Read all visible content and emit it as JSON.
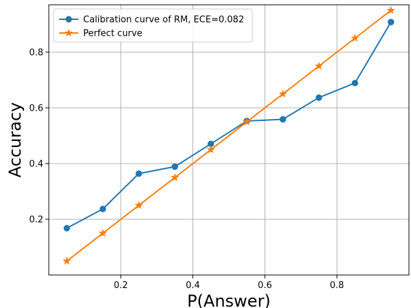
{
  "chart_data": {
    "type": "line",
    "xlabel": "P(Answer)",
    "ylabel": "Accuracy",
    "xlim": [
      0.0,
      1.0
    ],
    "ylim": [
      0.0,
      0.97
    ],
    "xticks": [
      0.2,
      0.4,
      0.6,
      0.8
    ],
    "yticks": [
      0.2,
      0.4,
      0.6,
      0.8
    ],
    "grid": true,
    "legend_position": "upper-left",
    "series": [
      {
        "name": "Calibration curve of RM, ECE=0.082",
        "color": "#1f77b4",
        "marker": "circle",
        "x": [
          0.05,
          0.15,
          0.25,
          0.35,
          0.45,
          0.55,
          0.65,
          0.75,
          0.85,
          0.95
        ],
        "y": [
          0.168,
          0.237,
          0.364,
          0.389,
          0.471,
          0.553,
          0.559,
          0.637,
          0.689,
          0.908
        ]
      },
      {
        "name": "Perfect curve",
        "color": "#ff7f0e",
        "marker": "star",
        "x": [
          0.05,
          0.15,
          0.25,
          0.35,
          0.45,
          0.55,
          0.65,
          0.75,
          0.85,
          0.95
        ],
        "y": [
          0.05,
          0.15,
          0.25,
          0.35,
          0.45,
          0.55,
          0.65,
          0.75,
          0.85,
          0.95
        ]
      }
    ]
  }
}
